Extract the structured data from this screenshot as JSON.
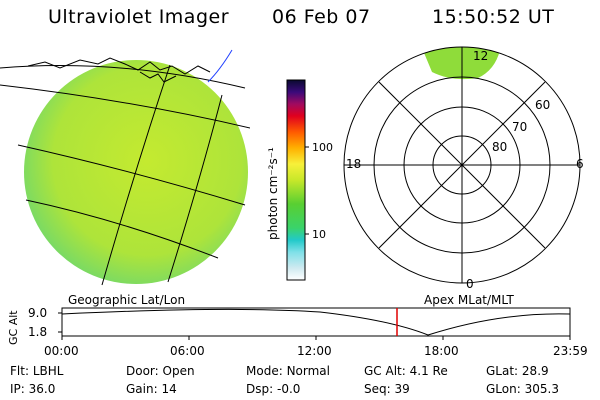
{
  "header": {
    "instrument": "Ultraviolet Imager",
    "date": "06 Feb 07",
    "time": "15:50:52 UT"
  },
  "left_panel": {
    "caption": "Geographic Lat/Lon"
  },
  "right_panel": {
    "caption": "Apex MLat/MLT",
    "mlt_labels": [
      "12",
      "18",
      "6",
      "0"
    ],
    "mlat_labels": [
      "60",
      "70",
      "80"
    ]
  },
  "colorbar": {
    "label": "photon cm⁻²s⁻¹",
    "ticks": [
      "100",
      "10"
    ]
  },
  "altitude_plot": {
    "ylabel": "GC Alt",
    "yticks": [
      "9.0",
      "1.8"
    ],
    "xticks": [
      "00:00",
      "06:00",
      "12:00",
      "18:00",
      "23:59"
    ],
    "marker_time": "15:50:52"
  },
  "status": {
    "row1": [
      {
        "key": "Flt:",
        "value": "LBHL"
      },
      {
        "key": "Door:",
        "value": "Open"
      },
      {
        "key": "Mode:",
        "value": "Normal"
      },
      {
        "key": "GC Alt:",
        "value": "4.1 Re"
      },
      {
        "key": "GLat:",
        "value": "28.9"
      }
    ],
    "row2": [
      {
        "key": "IP:",
        "value": "36.0"
      },
      {
        "key": "Gain:",
        "value": "14"
      },
      {
        "key": "Dsp:",
        "value": "-0.0"
      },
      {
        "key": "Seq:",
        "value": "39"
      },
      {
        "key": "GLon:",
        "value": "305.3"
      }
    ]
  },
  "colors": {
    "disk_fill": "#b4e63c",
    "aurora_fill": "#8fdc3a",
    "marker": "#e00000"
  }
}
